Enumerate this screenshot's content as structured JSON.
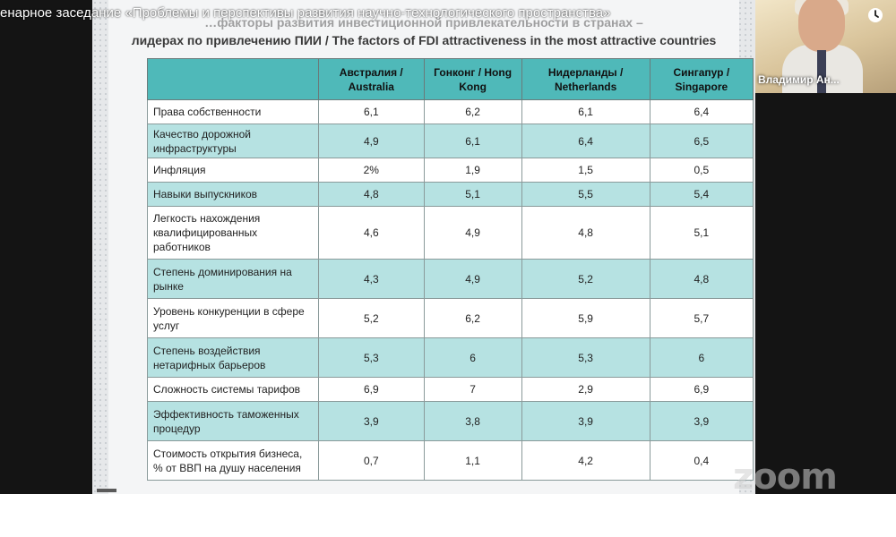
{
  "video_caption": "енарное заседание «Проблемы и перспективы развития научно-технологического пространства»",
  "slide": {
    "title_line1": "…факторы развития инвестиционной привлекательности в странах –",
    "title_line2": "лидерах по привлечению ПИИ / The factors of FDI attractiveness in the most attractive countries",
    "table": {
      "headers": [
        "",
        "Австралия / Australia",
        "Гонконг / Hong Kong",
        "Нидерланды / Netherlands",
        "Сингапур / Singapore"
      ],
      "rows": [
        [
          "Права собственности",
          "6,1",
          "6,2",
          "6,1",
          "6,4"
        ],
        [
          "Качество дорожной инфраструктуры",
          "4,9",
          "6,1",
          "6,4",
          "6,5"
        ],
        [
          "Инфляция",
          "2%",
          "1,9",
          "1,5",
          "0,5"
        ],
        [
          "Навыки выпускников",
          "4,8",
          "5,1",
          "5,5",
          "5,4"
        ],
        [
          "Легкость нахождения квалифицированных работников",
          "4,6",
          "4,9",
          "4,8",
          "5,1"
        ],
        [
          "Степень доминирования на рынке",
          "4,3",
          "4,9",
          "5,2",
          "4,8"
        ],
        [
          "Уровень конкуренции в сфере услуг",
          "5,2",
          "6,2",
          "5,9",
          "5,7"
        ],
        [
          "Степень воздействия нетарифных барьеров",
          "5,3",
          "6",
          "5,3",
          "6"
        ],
        [
          "Сложность системы тарифов",
          "6,9",
          "7",
          "2,9",
          "6,9"
        ],
        [
          "Эффективность таможенных процедур",
          "3,9",
          "3,8",
          "3,9",
          "3,9"
        ],
        [
          "Стоимость открытия бизнеса, % от ВВП на душу населения",
          "0,7",
          "1,1",
          "4,2",
          "0,4"
        ]
      ]
    }
  },
  "participant": {
    "name": "Владимир Ан..."
  },
  "icons": {
    "top_right": "clock-icon"
  },
  "watermark": "zoom",
  "colors": {
    "header": "#4fb9b9",
    "stripe": "#b6e2e2",
    "background": "#141414"
  }
}
